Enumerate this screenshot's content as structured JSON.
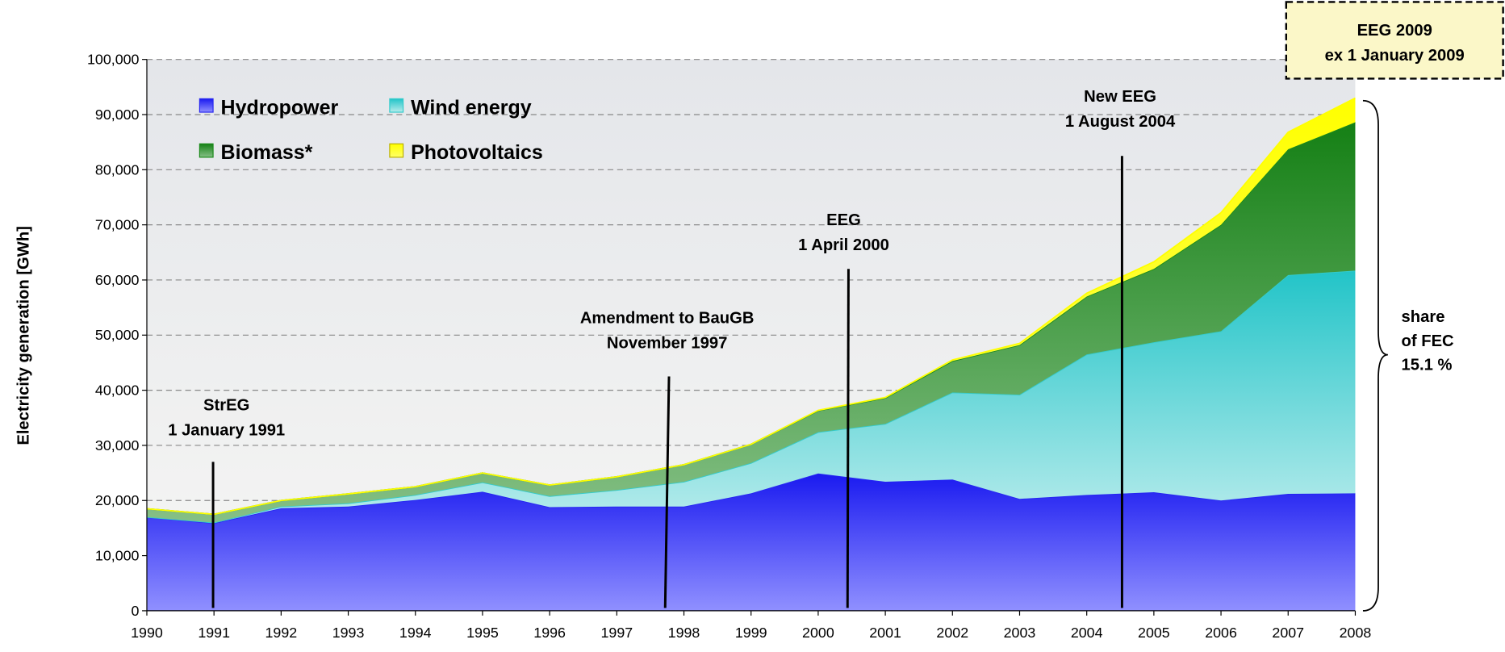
{
  "chart_data": {
    "type": "stacked-area",
    "y_label": "Electricity generation [GWh]",
    "categories": [
      "1990",
      "1991",
      "1992",
      "1993",
      "1994",
      "1995",
      "1996",
      "1997",
      "1998",
      "1999",
      "2000",
      "2001",
      "2002",
      "2003",
      "2004",
      "2005",
      "2006",
      "2007",
      "2008"
    ],
    "series": [
      {
        "name": "Hydropower",
        "color": "#2626f2",
        "values": [
          17000,
          15900,
          18600,
          18900,
          20100,
          21600,
          18800,
          18900,
          18900,
          21300,
          24900,
          23400,
          23800,
          20300,
          21000,
          21500,
          20000,
          21200,
          21300
        ]
      },
      {
        "name": "Wind energy",
        "color": "#33cccc",
        "values": [
          0,
          100,
          300,
          600,
          900,
          1700,
          2000,
          3000,
          4500,
          5500,
          7500,
          10500,
          15800,
          18900,
          25500,
          27200,
          30700,
          39700,
          40400
        ]
      },
      {
        "name": "Biomass*",
        "color": "#1a8a1a",
        "values": [
          1500,
          1500,
          1100,
          1700,
          1500,
          1700,
          2000,
          2400,
          3100,
          3400,
          3900,
          4700,
          5700,
          9000,
          10500,
          13300,
          19300,
          22800,
          26900
        ]
      },
      {
        "name": "Photovoltaics",
        "color": "#ffff00",
        "values": [
          0,
          0,
          0,
          0,
          0,
          0,
          0,
          0,
          0,
          0,
          60,
          100,
          200,
          300,
          600,
          1300,
          2200,
          3100,
          4400
        ]
      }
    ],
    "ylim": [
      0,
      100000
    ],
    "yticks": [
      0,
      {
        "value": 10000,
        "label": "10,000"
      },
      {
        "value": 20000,
        "label": "20,000"
      },
      {
        "value": 30000,
        "label": "30,000"
      },
      {
        "value": 40000,
        "label": "40,000"
      },
      {
        "value": 50000,
        "label": "50,000"
      },
      {
        "value": 60000,
        "label": "60,000"
      },
      {
        "value": 70000,
        "label": "70,000"
      },
      {
        "value": 80000,
        "label": "80,000"
      },
      {
        "value": 90000,
        "label": "90,000"
      },
      {
        "value": 100000,
        "label": "100,000"
      }
    ],
    "grid": true,
    "annotations": [
      {
        "lines": [
          "StrEG",
          "1 January 1991"
        ]
      },
      {
        "lines": [
          "Amendment to BauGB",
          "November 1997"
        ]
      },
      {
        "lines": [
          "EEG",
          "1  April 2000"
        ]
      },
      {
        "lines": [
          "New EEG",
          "1 August 2004"
        ]
      }
    ],
    "box_note": {
      "lines": [
        "EEG 2009",
        "ex 1 January 2009"
      ]
    },
    "share_note": {
      "lines": [
        "share",
        "of FEC",
        "15.1 %"
      ]
    }
  }
}
